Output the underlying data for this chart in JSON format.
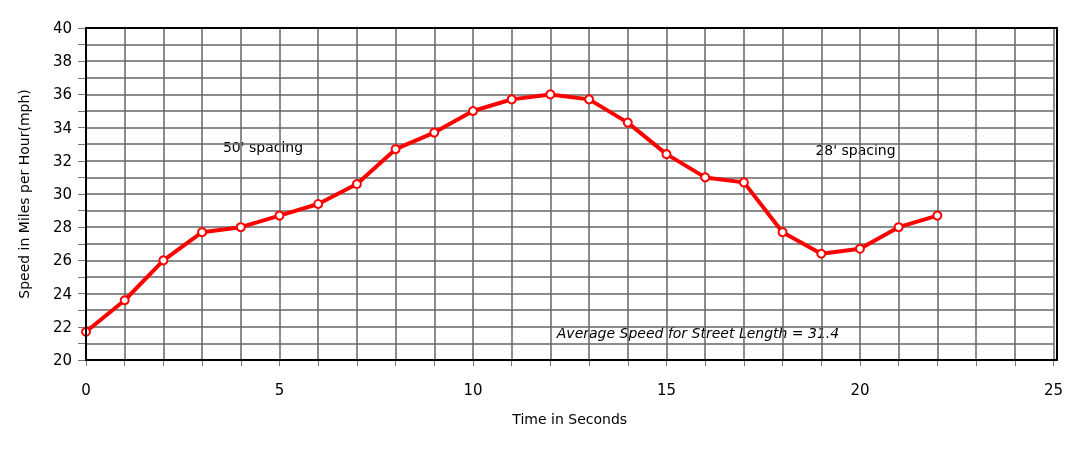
{
  "chart_data": {
    "type": "line",
    "xlabel": "Time in Seconds",
    "ylabel": "Speed in Miles per Hour(mph)",
    "x": [
      0,
      1,
      2,
      3,
      4,
      5,
      6,
      7,
      8,
      9,
      10,
      11,
      12,
      13,
      14,
      15,
      16,
      17,
      18,
      19,
      20,
      21,
      22
    ],
    "series": [
      {
        "color": "#ff0000",
        "values": [
          21.7,
          23.6,
          26.0,
          27.7,
          28.0,
          28.7,
          29.4,
          30.6,
          32.7,
          33.7,
          35.0,
          35.7,
          36.0,
          35.7,
          34.3,
          32.4,
          31.0,
          30.7,
          27.7,
          26.4,
          26.7,
          28.0,
          28.7
        ]
      }
    ],
    "xlim": [
      0,
      25
    ],
    "xticks": [
      0,
      {
        "value": 1,
        "label": null
      },
      {
        "value": 2,
        "label": null
      },
      {
        "value": 3,
        "label": null
      },
      {
        "value": 4,
        "label": null
      },
      5,
      {
        "value": 6,
        "label": null
      },
      {
        "value": 7,
        "label": null
      },
      {
        "value": 8,
        "label": null
      },
      {
        "value": 9,
        "label": null
      },
      10,
      {
        "value": 11,
        "label": null
      },
      {
        "value": 12,
        "label": null
      },
      {
        "value": 13,
        "label": null
      },
      {
        "value": 14,
        "label": null
      },
      15,
      {
        "value": 16,
        "label": null
      },
      {
        "value": 17,
        "label": null
      },
      {
        "value": 18,
        "label": null
      },
      {
        "value": 19,
        "label": null
      },
      20,
      {
        "value": 21,
        "label": null
      },
      {
        "value": 22,
        "label": null
      },
      {
        "value": 23,
        "label": null
      },
      {
        "value": 24,
        "label": null
      },
      25
    ],
    "ylim": [
      20,
      40
    ],
    "yticks": [
      20,
      {
        "value": 21,
        "label": null
      },
      22,
      {
        "value": 23,
        "label": null
      },
      24,
      {
        "value": 25,
        "label": null
      },
      26,
      {
        "value": 27,
        "label": null
      },
      28,
      {
        "value": 29,
        "label": null
      },
      30,
      {
        "value": 31,
        "label": null
      },
      32,
      {
        "value": 33,
        "label": null
      },
      34,
      {
        "value": 35,
        "label": null
      },
      36,
      {
        "value": 37,
        "label": null
      },
      38,
      {
        "value": 39,
        "label": null
      },
      40
    ],
    "grid": true,
    "marker": "circle",
    "line_style": "solid",
    "annotations": [
      "50' spacing",
      "28' spacing",
      "Average Speed for Street Length = 31.4"
    ]
  }
}
